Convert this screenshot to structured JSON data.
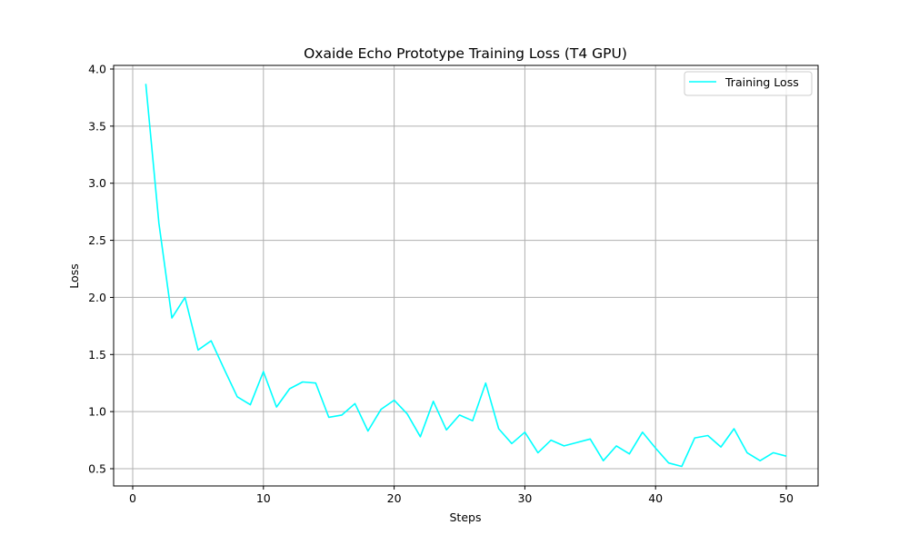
{
  "chart_data": {
    "type": "line",
    "title": "Oxaide Echo Prototype Training Loss (T4 GPU)",
    "xlabel": "Steps",
    "ylabel": "Loss",
    "xlim": [
      -1.45,
      52.45
    ],
    "ylim": [
      0.35,
      4.04
    ],
    "xticks": [
      0,
      10,
      20,
      30,
      40,
      50
    ],
    "yticks": [
      0.5,
      1.0,
      1.5,
      2.0,
      2.5,
      3.0,
      3.5,
      4.0
    ],
    "ytick_labels": [
      "0.5",
      "1.0",
      "1.5",
      "2.0",
      "2.5",
      "3.0",
      "3.5",
      "4.0"
    ],
    "grid": true,
    "legend_position": "upper right",
    "series": [
      {
        "name": "Training Loss",
        "color": "#00ffff",
        "x": [
          1,
          2,
          3,
          4,
          5,
          6,
          7,
          8,
          9,
          10,
          11,
          12,
          13,
          14,
          15,
          16,
          17,
          18,
          19,
          20,
          21,
          22,
          23,
          24,
          25,
          26,
          27,
          28,
          29,
          30,
          31,
          32,
          33,
          34,
          35,
          36,
          37,
          38,
          39,
          40,
          41,
          42,
          43,
          44,
          45,
          46,
          47,
          48,
          49,
          50
        ],
        "values": [
          3.87,
          2.65,
          1.82,
          2.0,
          1.54,
          1.62,
          1.37,
          1.13,
          1.06,
          1.35,
          1.04,
          1.2,
          1.26,
          1.25,
          0.95,
          0.97,
          1.07,
          0.83,
          1.02,
          1.1,
          0.98,
          0.78,
          1.09,
          0.84,
          0.97,
          0.92,
          1.25,
          0.85,
          0.72,
          0.82,
          0.64,
          0.75,
          0.7,
          0.73,
          0.76,
          0.57,
          0.7,
          0.63,
          0.82,
          0.68,
          0.55,
          0.52,
          0.77,
          0.79,
          0.69,
          0.85,
          0.64,
          0.57,
          0.64,
          0.61
        ]
      }
    ]
  }
}
